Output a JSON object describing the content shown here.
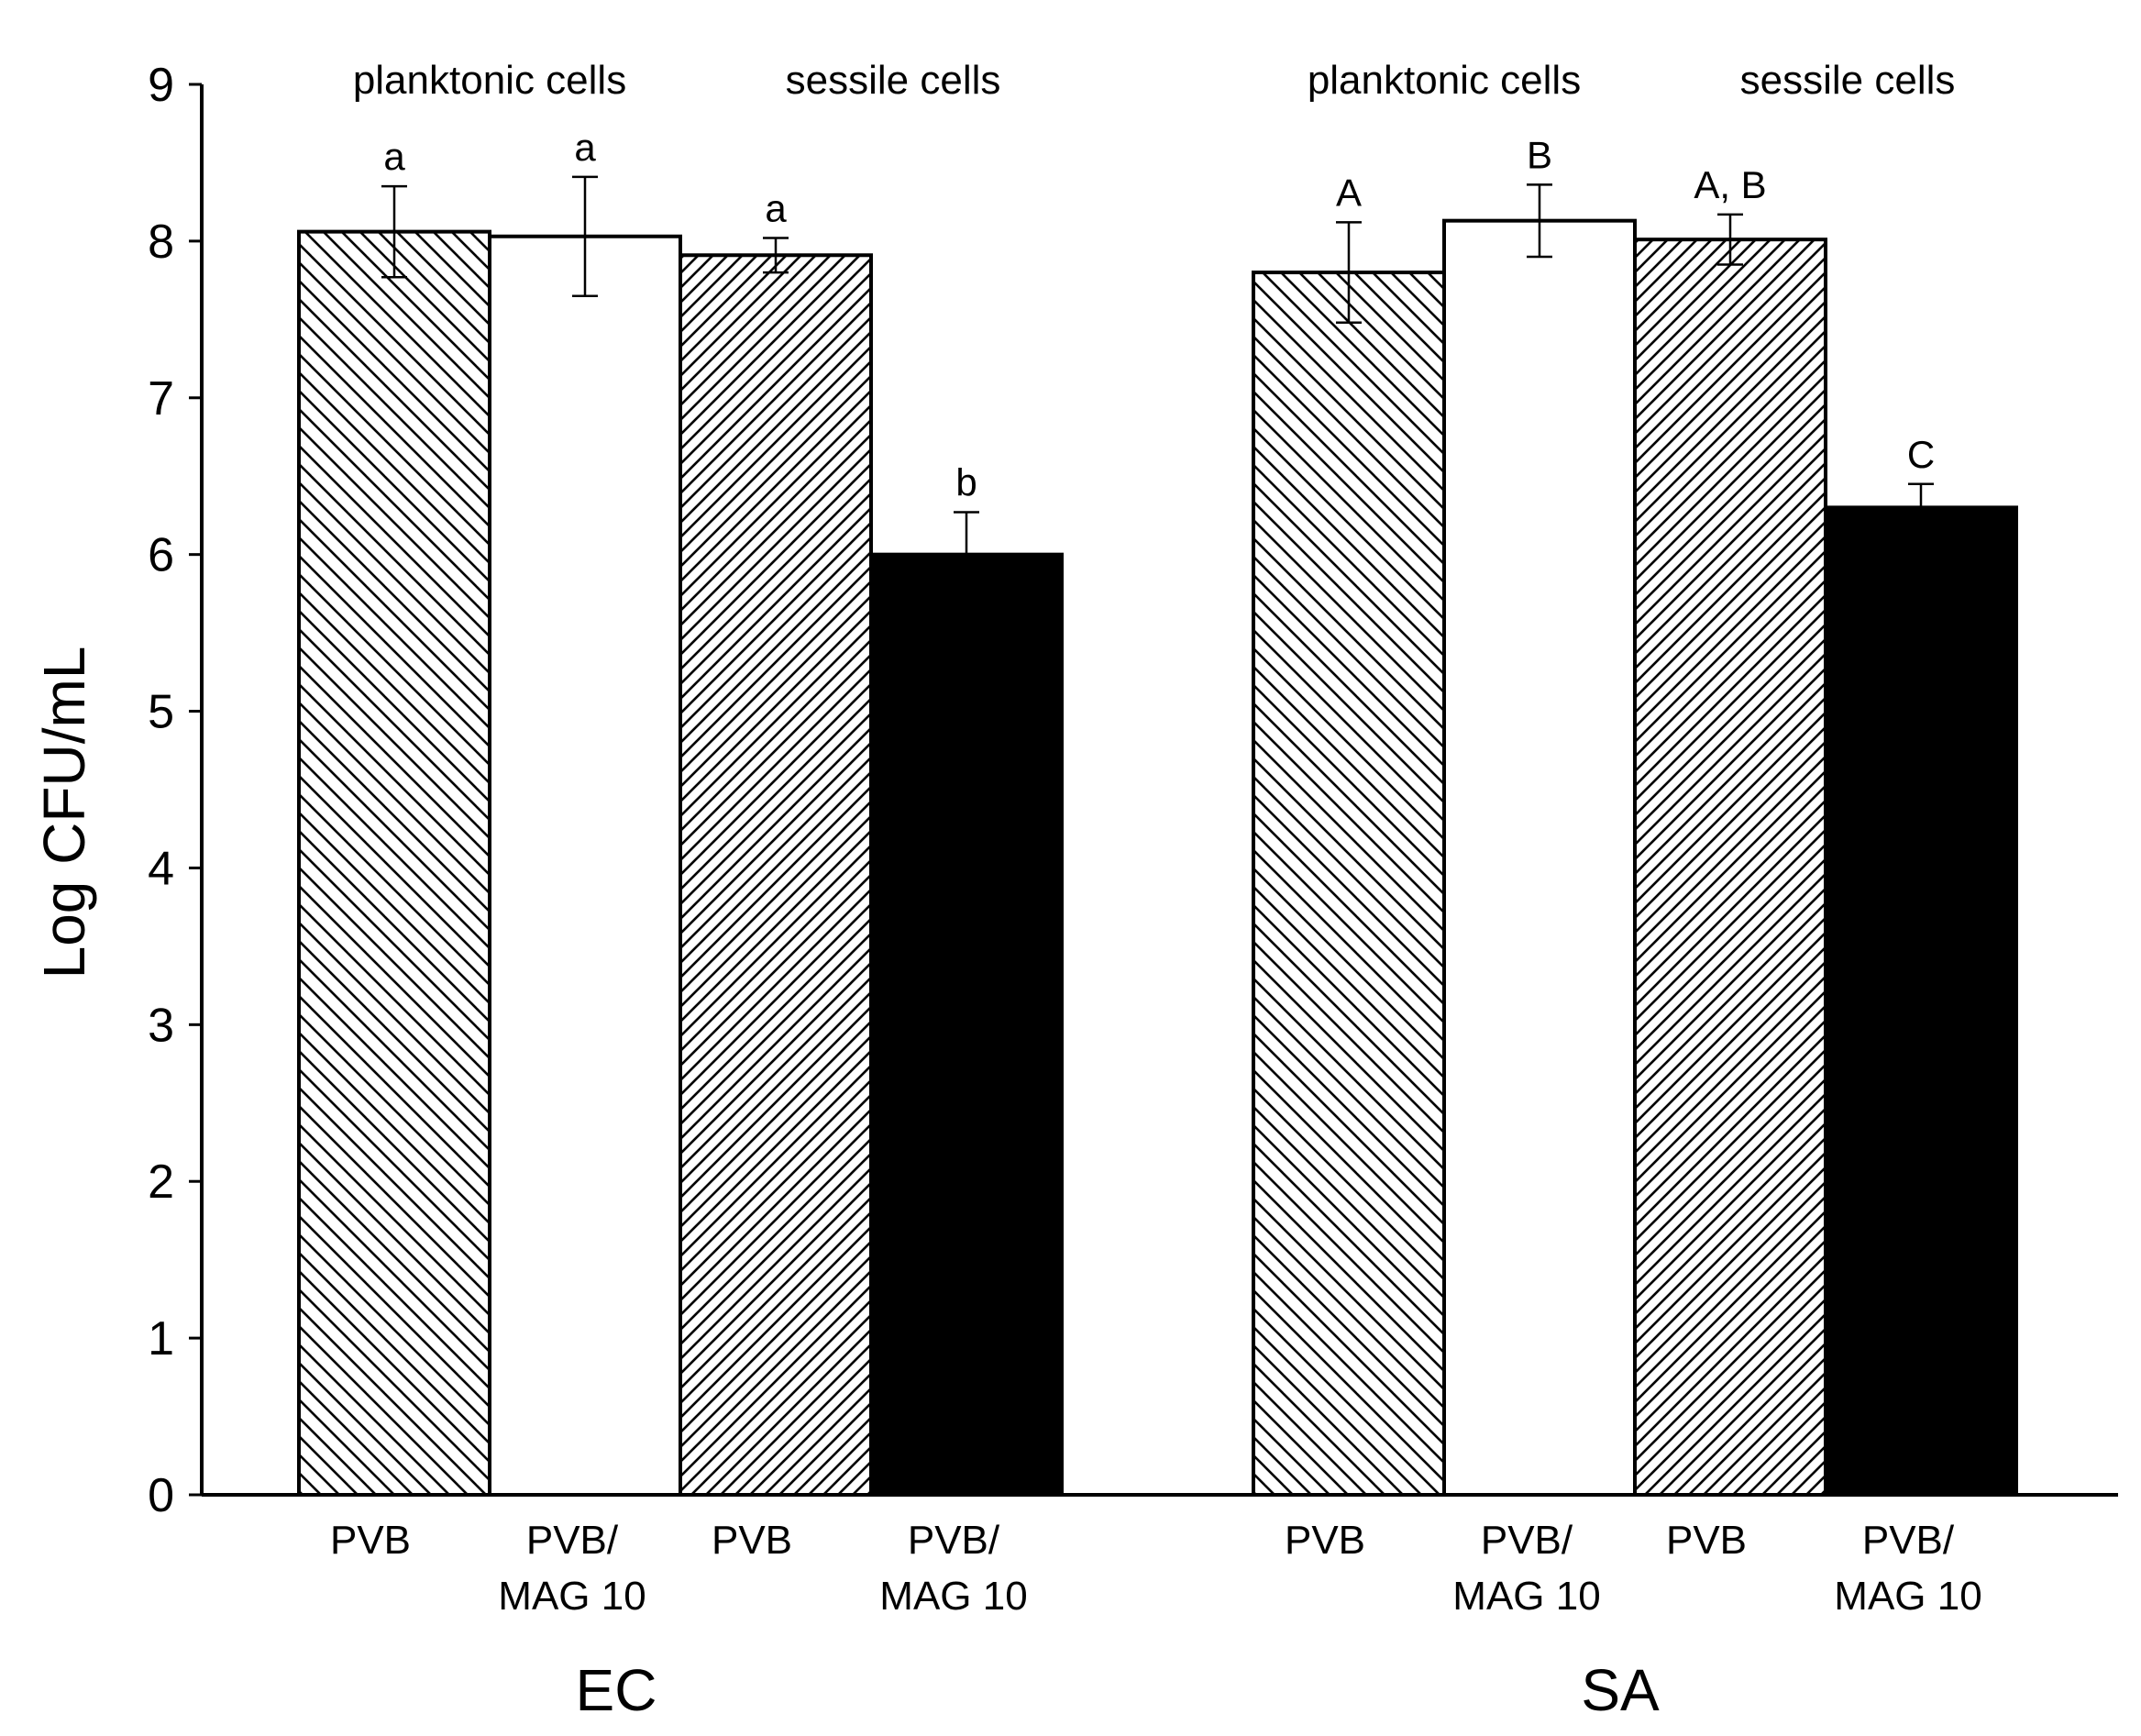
{
  "colors": {
    "axis": "#000000",
    "bar_black": "#000000",
    "bar_white": "#ffffff",
    "hatch": "#000000"
  },
  "chart_data": {
    "type": "bar",
    "ylabel": "Log CFU/mL",
    "ylim": [
      0,
      9
    ],
    "yticks": [
      "0",
      "1",
      "2",
      "3",
      "4",
      "5",
      "6",
      "7",
      "8",
      "9"
    ],
    "groups": [
      {
        "label": "EC",
        "sections": [
          "planktonic cells",
          "sessile cells"
        ],
        "bars": [
          {
            "category": "PVB",
            "category_line2": "",
            "value": 8.06,
            "error": 0.29,
            "letter": "a",
            "pattern": "hatch-back"
          },
          {
            "category": "PVB/",
            "category_line2": "MAG 10",
            "value": 8.03,
            "error": 0.38,
            "letter": "a",
            "pattern": "white"
          },
          {
            "category": "PVB",
            "category_line2": "",
            "value": 7.91,
            "error": 0.11,
            "letter": "a",
            "pattern": "hatch-forward"
          },
          {
            "category": "PVB/",
            "category_line2": "MAG 10",
            "value": 6.0,
            "error": 0.27,
            "letter": "b",
            "pattern": "black"
          }
        ]
      },
      {
        "label": "SA",
        "sections": [
          "planktonic cells",
          "sessile cells"
        ],
        "bars": [
          {
            "category": "PVB",
            "category_line2": "",
            "value": 7.8,
            "error": 0.32,
            "letter": "A",
            "pattern": "hatch-back"
          },
          {
            "category": "PVB/",
            "category_line2": "MAG 10",
            "value": 8.13,
            "error": 0.23,
            "letter": "B",
            "pattern": "white"
          },
          {
            "category": "PVB",
            "category_line2": "",
            "value": 8.01,
            "error": 0.16,
            "letter": "A, B",
            "pattern": "hatch-forward"
          },
          {
            "category": "PVB/",
            "category_line2": "MAG 10",
            "value": 6.3,
            "error": 0.15,
            "letter": "C",
            "pattern": "black"
          }
        ]
      }
    ]
  }
}
